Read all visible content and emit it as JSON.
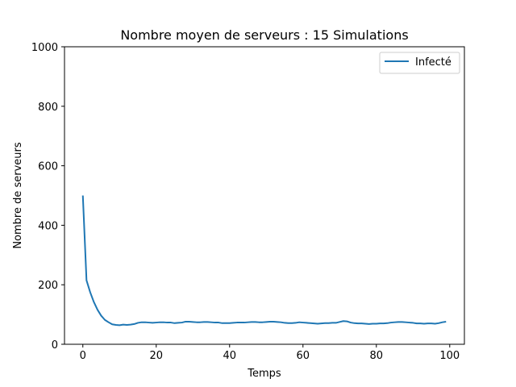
{
  "chart_data": {
    "type": "line",
    "title": "Nombre moyen de serveurs : 15 Simulations",
    "xlabel": "Temps",
    "ylabel": "Nombre de serveurs",
    "xlim": [
      -5,
      104
    ],
    "ylim": [
      0,
      1000
    ],
    "xticks": [
      0,
      20,
      40,
      60,
      80,
      100
    ],
    "yticks": [
      0,
      200,
      400,
      600,
      800,
      1000
    ],
    "grid": false,
    "legend_position": "top-right",
    "series": [
      {
        "name": "Infecté",
        "color": "#1f77b4",
        "x": [
          0,
          1,
          2,
          3,
          4,
          5,
          6,
          7,
          8,
          9,
          10,
          11,
          12,
          13,
          14,
          15,
          16,
          17,
          18,
          19,
          20,
          21,
          22,
          23,
          24,
          25,
          26,
          27,
          28,
          29,
          30,
          31,
          32,
          33,
          34,
          35,
          36,
          37,
          38,
          39,
          40,
          41,
          42,
          43,
          44,
          45,
          46,
          47,
          48,
          49,
          50,
          51,
          52,
          53,
          54,
          55,
          56,
          57,
          58,
          59,
          60,
          61,
          62,
          63,
          64,
          65,
          66,
          67,
          68,
          69,
          70,
          71,
          72,
          73,
          74,
          75,
          76,
          77,
          78,
          79,
          80,
          81,
          82,
          83,
          84,
          85,
          86,
          87,
          88,
          89,
          90,
          91,
          92,
          93,
          94,
          95,
          96,
          97,
          98,
          99
        ],
        "y": [
          500,
          215,
          175,
          142,
          116,
          96,
          82,
          74,
          67,
          65,
          64,
          66,
          65,
          66,
          68,
          72,
          74,
          74,
          73,
          72,
          73,
          74,
          74,
          73,
          73,
          71,
          72,
          73,
          76,
          76,
          75,
          74,
          74,
          75,
          75,
          74,
          73,
          73,
          71,
          71,
          71,
          72,
          73,
          73,
          73,
          74,
          75,
          75,
          74,
          74,
          75,
          76,
          76,
          75,
          74,
          72,
          71,
          71,
          72,
          74,
          73,
          72,
          71,
          70,
          69,
          70,
          71,
          71,
          72,
          72,
          75,
          78,
          77,
          73,
          71,
          70,
          70,
          69,
          68,
          69,
          69,
          70,
          70,
          71,
          73,
          74,
          75,
          75,
          74,
          73,
          72,
          70,
          70,
          69,
          70,
          70,
          69,
          71,
          74,
          76
        ]
      }
    ]
  }
}
